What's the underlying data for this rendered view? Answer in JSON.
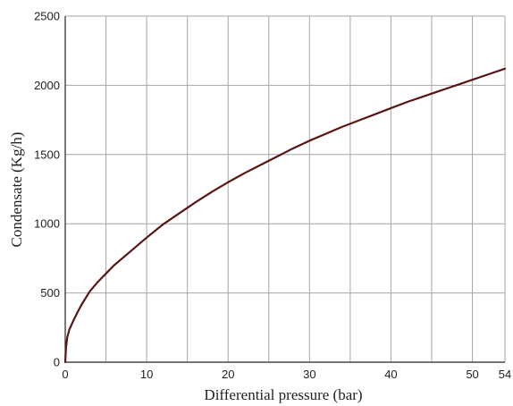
{
  "chart_data": {
    "type": "line",
    "title": "",
    "xlabel": "Differential pressure (bar)",
    "ylabel": "Condensate (Kg/h)",
    "xlim": [
      0,
      54
    ],
    "ylim": [
      0,
      2500
    ],
    "x_ticks": [
      0,
      10,
      20,
      30,
      40,
      50,
      54
    ],
    "y_ticks": [
      0,
      500,
      1000,
      1500,
      2000,
      2500
    ],
    "x_gridlines": [
      0,
      5,
      10,
      15,
      20,
      25,
      30,
      35,
      40,
      45,
      50,
      54
    ],
    "y_gridlines": [
      0,
      500,
      1000,
      1500,
      2000,
      2500
    ],
    "grid": true,
    "legend": "none",
    "series": [
      {
        "color": "#5a1515",
        "x": [
          0,
          0.1,
          0.25,
          0.5,
          1,
          1.5,
          2,
          3,
          4,
          5,
          6,
          8,
          10,
          12,
          14,
          16,
          18,
          20,
          22,
          24,
          26,
          28,
          30,
          32,
          34,
          36,
          38,
          40,
          42,
          44,
          46,
          48,
          50,
          52,
          54
        ],
        "y": [
          0,
          110,
          180,
          235,
          300,
          360,
          415,
          510,
          580,
          640,
          700,
          800,
          900,
          995,
          1075,
          1155,
          1230,
          1300,
          1365,
          1425,
          1485,
          1545,
          1600,
          1650,
          1700,
          1745,
          1790,
          1835,
          1880,
          1920,
          1960,
          2000,
          2040,
          2080,
          2120
        ]
      }
    ]
  },
  "colors": {
    "grid": "#a6a6a6",
    "axis": "#222222",
    "background": "#ffffff"
  }
}
